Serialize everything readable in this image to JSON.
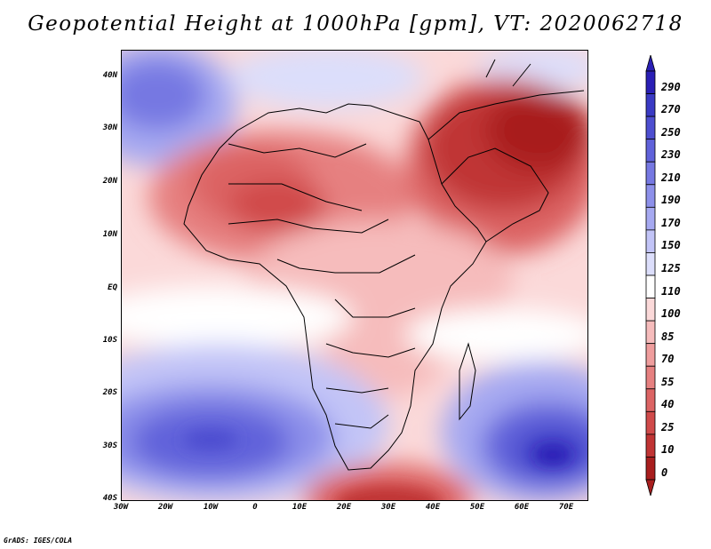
{
  "title": "Geopotential Height at 1000hPa [gpm], VT: 2020062718",
  "credit": "GrADS: IGES/COLA",
  "map": {
    "lat_labels": [
      "40N",
      "30N",
      "20N",
      "10N",
      "EQ",
      "10S",
      "20S",
      "30S",
      "40S"
    ],
    "lon_labels": [
      "30W",
      "20W",
      "10W",
      "0",
      "10E",
      "20E",
      "30E",
      "40E",
      "50E",
      "60E",
      "70E"
    ]
  },
  "colorbar": {
    "labels": [
      "290",
      "270",
      "250",
      "230",
      "210",
      "190",
      "170",
      "150",
      "125",
      "110",
      "100",
      "85",
      "70",
      "55",
      "40",
      "25",
      "10",
      "0"
    ],
    "colors": [
      "#2a1fb5",
      "#3a3ac4",
      "#4d4ed0",
      "#6062da",
      "#7678e2",
      "#8d90ea",
      "#a6a9f1",
      "#c2c4f7",
      "#dcdefb",
      "#ffffff",
      "#fbd9d9",
      "#f6bcbc",
      "#ef9d9d",
      "#e68080",
      "#dc6464",
      "#d04a4a",
      "#c03434",
      "#a81e1e"
    ]
  }
}
